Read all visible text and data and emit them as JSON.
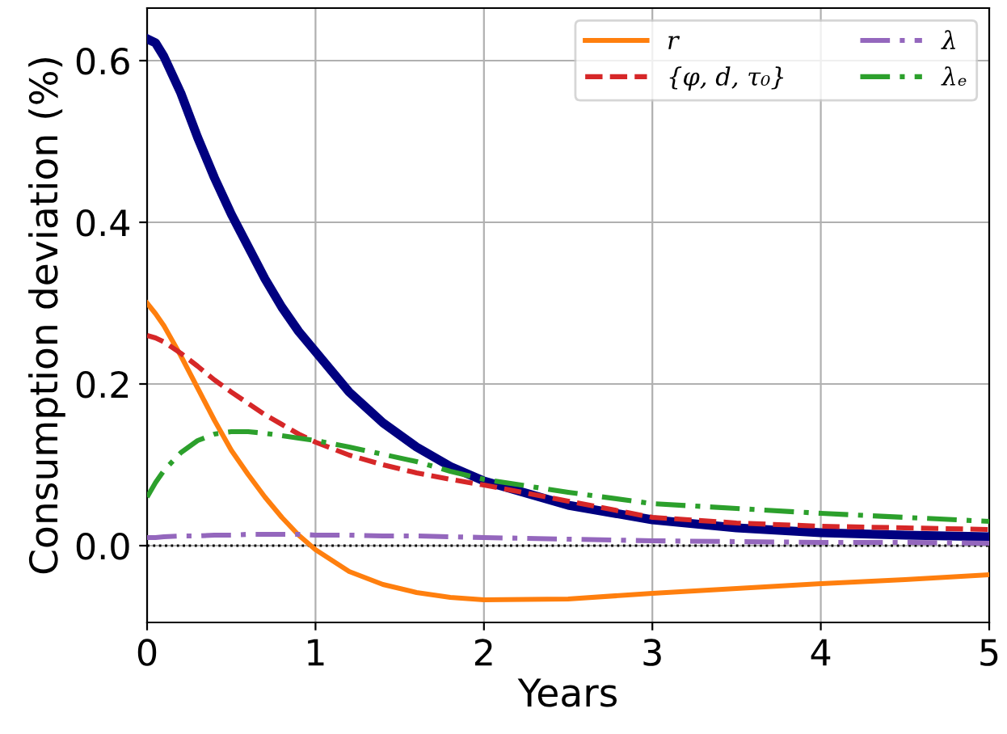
{
  "chart_data": {
    "type": "line",
    "xlabel": "Years",
    "ylabel": "Consumption deviation (%)",
    "x": [
      0,
      0.05,
      0.1,
      0.2,
      0.3,
      0.4,
      0.5,
      0.6,
      0.7,
      0.8,
      0.9,
      1,
      1.2,
      1.4,
      1.6,
      1.8,
      2,
      2.5,
      3,
      3.5,
      4,
      4.5,
      5
    ],
    "series": [
      {
        "color": "#000080",
        "values": [
          0.627,
          0.622,
          0.605,
          0.56,
          0.505,
          0.455,
          0.41,
          0.37,
          0.33,
          0.295,
          0.265,
          0.24,
          0.19,
          0.152,
          0.122,
          0.098,
          0.08,
          0.05,
          0.032,
          0.022,
          0.016,
          0.013,
          0.011
        ],
        "line_style": "solid"
      },
      {
        "name": "r",
        "color": "#ff7f0e",
        "values": [
          0.3,
          0.287,
          0.272,
          0.235,
          0.195,
          0.155,
          0.118,
          0.088,
          0.06,
          0.035,
          0.013,
          -0.005,
          -0.032,
          -0.048,
          -0.058,
          -0.064,
          -0.067,
          -0.066,
          -0.059,
          -0.053,
          -0.047,
          -0.042,
          -0.036
        ],
        "line_style": "solid"
      },
      {
        "name": "{φ, d, τ₀}",
        "color": "#d62728",
        "values": [
          0.26,
          0.257,
          0.252,
          0.238,
          0.222,
          0.205,
          0.19,
          0.176,
          0.162,
          0.15,
          0.138,
          0.128,
          0.112,
          0.1,
          0.09,
          0.082,
          0.075,
          0.055,
          0.035,
          0.028,
          0.024,
          0.022,
          0.02
        ],
        "line_style": "dashed"
      },
      {
        "name": "λ",
        "color": "#9467bd",
        "values": [
          0.01,
          0.01,
          0.011,
          0.012,
          0.012,
          0.013,
          0.013,
          0.014,
          0.014,
          0.014,
          0.014,
          0.013,
          0.013,
          0.012,
          0.012,
          0.011,
          0.01,
          0.008,
          0.006,
          0.005,
          0.004,
          0.004,
          0.003
        ],
        "line_style": "dashdot"
      },
      {
        "name": "λₑ",
        "color": "#2ca02c",
        "values": [
          0.06,
          0.078,
          0.093,
          0.115,
          0.13,
          0.138,
          0.141,
          0.141,
          0.139,
          0.136,
          0.133,
          0.13,
          0.122,
          0.113,
          0.104,
          0.092,
          0.082,
          0.066,
          0.052,
          0.046,
          0.04,
          0.035,
          0.03
        ],
        "line_style": "dashdot"
      }
    ],
    "xlim": [
      0,
      5
    ],
    "xticks": [
      0,
      1,
      2,
      3,
      4,
      5
    ],
    "ylim": [
      -0.095,
      0.665
    ],
    "yticks": [
      {
        "value": 0,
        "label": "0.0"
      },
      0.2,
      0.4,
      0.6
    ],
    "ref_lines": [
      {
        "axis": "y",
        "value": 0,
        "color": "#000000",
        "line_style": "dotted"
      }
    ],
    "grid": true,
    "legend": "top right",
    "marker": "none"
  }
}
